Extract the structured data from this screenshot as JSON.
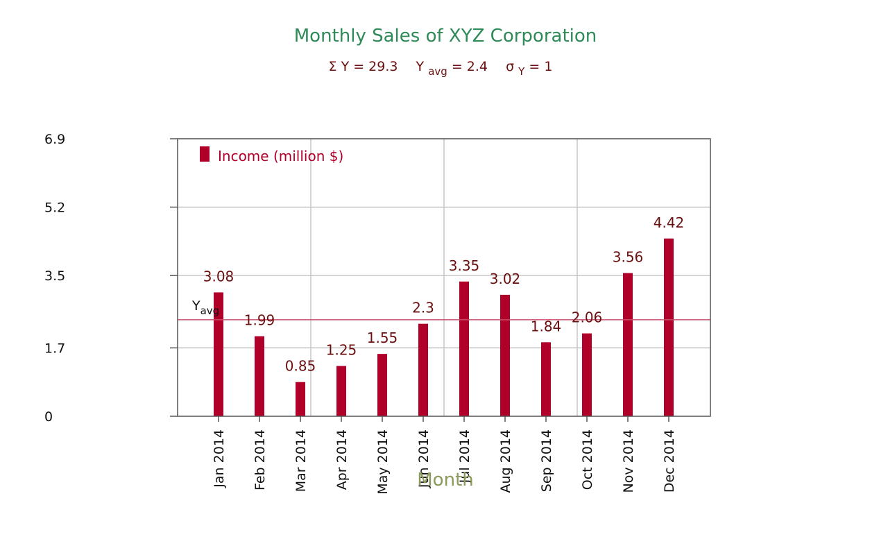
{
  "chart_data": {
    "type": "bar",
    "title": "Monthly Sales of XYZ Corporation",
    "stats": {
      "sum_text": "Σ Y = 29.3",
      "avg_prefix": "Y",
      "avg_sub": "avg",
      "avg_value": "= 2.4",
      "sigma_prefix": "σ",
      "sigma_sub": "Y",
      "sigma_value": "= 1"
    },
    "xlabel": "Month",
    "ylabel": "",
    "ylim": [
      0,
      6.9
    ],
    "yticks": [
      0,
      1.7,
      3.5,
      5.2,
      6.9
    ],
    "ytick_labels": [
      "0",
      "1.7",
      "3.5",
      "5.2",
      "6.9"
    ],
    "grid": true,
    "legend": "top-left",
    "average": 2.4,
    "average_label": {
      "main": "Y",
      "sub": "avg"
    },
    "categories": [
      "Jan 2014",
      "Feb 2014",
      "Mar 2014",
      "Apr 2014",
      "May 2014",
      "Jun 2014",
      "Jul 2014",
      "Aug 2014",
      "Sep 2014",
      "Oct 2014",
      "Nov 2014",
      "Dec 2014"
    ],
    "series": [
      {
        "name": "Income (million $)",
        "values": [
          3.08,
          1.99,
          0.85,
          1.25,
          1.55,
          2.3,
          3.35,
          3.02,
          1.84,
          2.06,
          3.56,
          4.42
        ],
        "labels": [
          "3.08",
          "1.99",
          "0.85",
          "1.25",
          "1.55",
          "2.3",
          "3.35",
          "3.02",
          "1.84",
          "2.06",
          "3.56",
          "4.42"
        ]
      }
    ],
    "colors": {
      "title": "#2e8b57",
      "stats": "#6b1010",
      "bar": "#b0002a",
      "data_label": "#6b1010",
      "legend_text": "#b0002a",
      "average_line": "#c8506a",
      "grid": "#bdbdbd",
      "axis": "#555555",
      "tick_text": "#111111",
      "xlabel": "#8a9a5b"
    }
  }
}
